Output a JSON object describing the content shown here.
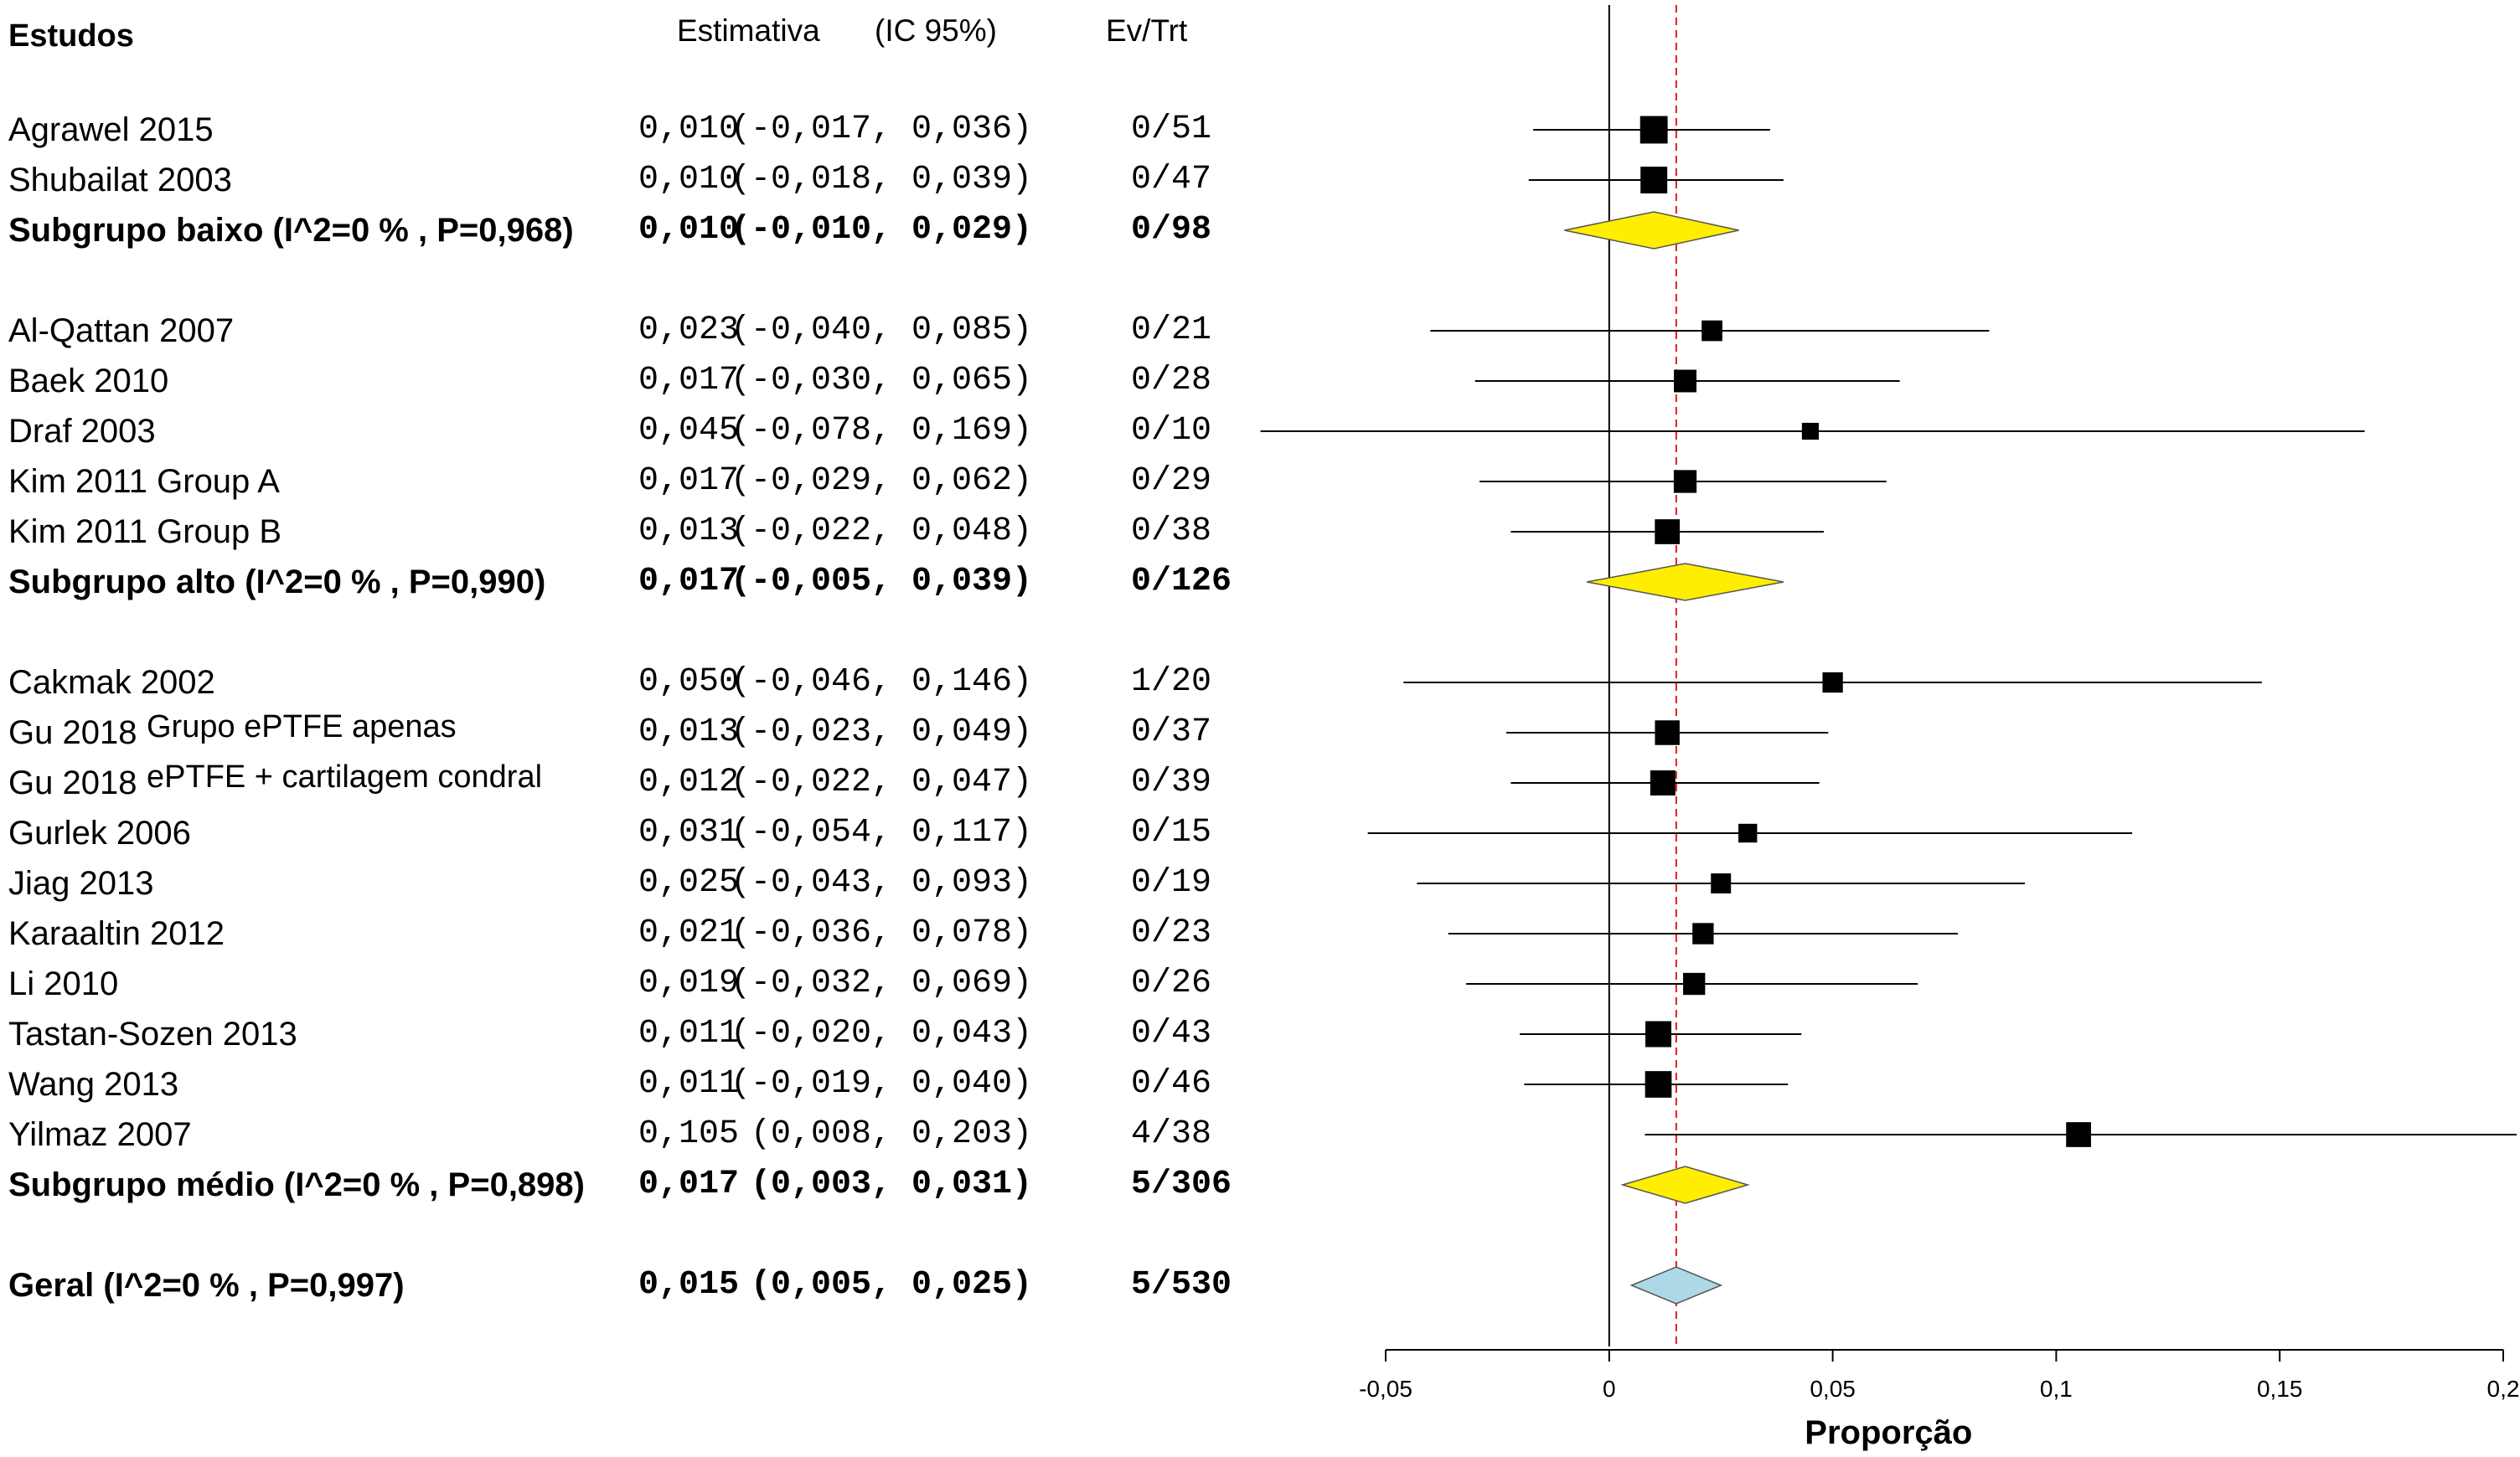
{
  "headers": {
    "studies": "Estudos",
    "estimate": "Estimativa",
    "ci": "(IC 95%)",
    "events": "Ev/Trt"
  },
  "chart_data": {
    "type": "forest",
    "xlabel": "Proporção",
    "xlim": [
      -0.05,
      0.2
    ],
    "xticks": [
      -0.05,
      0,
      0.05,
      0.1,
      0.15,
      0.2
    ],
    "xtick_labels": [
      "-0,05",
      "0",
      "0,05",
      "0,1",
      "0,15",
      "0,2"
    ],
    "overall_estimate_line": 0.015,
    "colors": {
      "subgroup_diamond": "#ffee00",
      "overall_diamond": "#add8e6",
      "reference_line": "#e31a1c"
    },
    "rows": [
      {
        "label": "Agrawel 2015",
        "est_text": "0,010",
        "ci_text": "(-0,017, 0,036)",
        "ev": "0/51",
        "kind": "study",
        "est": 0.01,
        "lo": -0.017,
        "hi": 0.036,
        "weight": 51
      },
      {
        "label": "Shubailat 2003",
        "est_text": "0,010",
        "ci_text": "(-0,018, 0,039)",
        "ev": "0/47",
        "kind": "study",
        "est": 0.01,
        "lo": -0.018,
        "hi": 0.039,
        "weight": 47
      },
      {
        "label": "Subgrupo baixo (I^2=0 % , P=0,968)",
        "est_text": "0,010",
        "ci_text": "(-0,010, 0,029)",
        "ev": "0/98",
        "kind": "subgroup",
        "est": 0.01,
        "lo": -0.01,
        "hi": 0.029
      },
      {
        "label": "Al-Qattan 2007",
        "est_text": "0,023",
        "ci_text": "(-0,040, 0,085)",
        "ev": "0/21",
        "kind": "study",
        "est": 0.023,
        "lo": -0.04,
        "hi": 0.085,
        "weight": 21
      },
      {
        "label": "Baek 2010",
        "est_text": "0,017",
        "ci_text": "(-0,030, 0,065)",
        "ev": "0/28",
        "kind": "study",
        "est": 0.017,
        "lo": -0.03,
        "hi": 0.065,
        "weight": 28
      },
      {
        "label": "Draf 2003",
        "est_text": "0,045",
        "ci_text": "(-0,078, 0,169)",
        "ev": "0/10",
        "kind": "study",
        "est": 0.045,
        "lo": -0.078,
        "hi": 0.169,
        "weight": 10
      },
      {
        "label": "Kim 2011 Group A",
        "est_text": "0,017",
        "ci_text": "(-0,029, 0,062)",
        "ev": "0/29",
        "kind": "study",
        "est": 0.017,
        "lo": -0.029,
        "hi": 0.062,
        "weight": 29
      },
      {
        "label": "Kim 2011 Group B",
        "est_text": "0,013",
        "ci_text": "(-0,022, 0,048)",
        "ev": "0/38",
        "kind": "study",
        "est": 0.013,
        "lo": -0.022,
        "hi": 0.048,
        "weight": 38
      },
      {
        "label": "Subgrupo alto  (I^2=0 % , P=0,990)",
        "est_text": "0,017",
        "ci_text": "(-0,005, 0,039)",
        "ev": "0/126",
        "kind": "subgroup",
        "est": 0.017,
        "lo": -0.005,
        "hi": 0.039
      },
      {
        "label": "Cakmak 2002",
        "est_text": "0,050",
        "ci_text": "(-0,046, 0,146)",
        "ev": "1/20",
        "kind": "study",
        "est": 0.05,
        "lo": -0.046,
        "hi": 0.146,
        "weight": 20
      },
      {
        "label": "Gu 2018",
        "sublabel": "Grupo ePTFE apenas",
        "est_text": "0,013",
        "ci_text": "(-0,023, 0,049)",
        "ev": "0/37",
        "kind": "study",
        "est": 0.013,
        "lo": -0.023,
        "hi": 0.049,
        "weight": 37
      },
      {
        "label": "Gu 2018",
        "sublabel": "ePTFE + cartilagem condral",
        "est_text": "0,012",
        "ci_text": "(-0,022, 0,047)",
        "ev": "0/39",
        "kind": "study",
        "est": 0.012,
        "lo": -0.022,
        "hi": 0.047,
        "weight": 39
      },
      {
        "label": "Gurlek 2006",
        "est_text": "0,031",
        "ci_text": "(-0,054, 0,117)",
        "ev": "0/15",
        "kind": "study",
        "est": 0.031,
        "lo": -0.054,
        "hi": 0.117,
        "weight": 15
      },
      {
        "label": "Jiag 2013",
        "est_text": "0,025",
        "ci_text": "(-0,043, 0,093)",
        "ev": "0/19",
        "kind": "study",
        "est": 0.025,
        "lo": -0.043,
        "hi": 0.093,
        "weight": 19
      },
      {
        "label": "Karaaltin 2012",
        "est_text": "0,021",
        "ci_text": "(-0,036, 0,078)",
        "ev": "0/23",
        "kind": "study",
        "est": 0.021,
        "lo": -0.036,
        "hi": 0.078,
        "weight": 23
      },
      {
        "label": "Li 2010",
        "est_text": "0,019",
        "ci_text": "(-0,032, 0,069)",
        "ev": "0/26",
        "kind": "study",
        "est": 0.019,
        "lo": -0.032,
        "hi": 0.069,
        "weight": 26
      },
      {
        "label": "Tastan-Sozen 2013",
        "est_text": "0,011",
        "ci_text": "(-0,020, 0,043)",
        "ev": "0/43",
        "kind": "study",
        "est": 0.011,
        "lo": -0.02,
        "hi": 0.043,
        "weight": 43
      },
      {
        "label": "Wang 2013",
        "est_text": "0,011",
        "ci_text": "(-0,019, 0,040)",
        "ev": "0/46",
        "kind": "study",
        "est": 0.011,
        "lo": -0.019,
        "hi": 0.04,
        "weight": 46
      },
      {
        "label": "Yilmaz 2007",
        "est_text": "0,105",
        "ci_text": " (0,008, 0,203)",
        "ev": "4/38",
        "kind": "study",
        "est": 0.105,
        "lo": 0.008,
        "hi": 0.203,
        "weight": 38
      },
      {
        "label": "Subgrupo médio (I^2=0 % , P=0,898)",
        "est_text": "0,017",
        "ci_text": " (0,003, 0,031)",
        "ev": "5/306",
        "kind": "subgroup",
        "est": 0.017,
        "lo": 0.003,
        "hi": 0.031
      },
      {
        "label": "Geral (I^2=0 % , P=0,997)",
        "est_text": "0,015",
        "ci_text": " (0,005, 0,025)",
        "ev": "5/530",
        "kind": "overall",
        "est": 0.015,
        "lo": 0.005,
        "hi": 0.025
      }
    ]
  }
}
